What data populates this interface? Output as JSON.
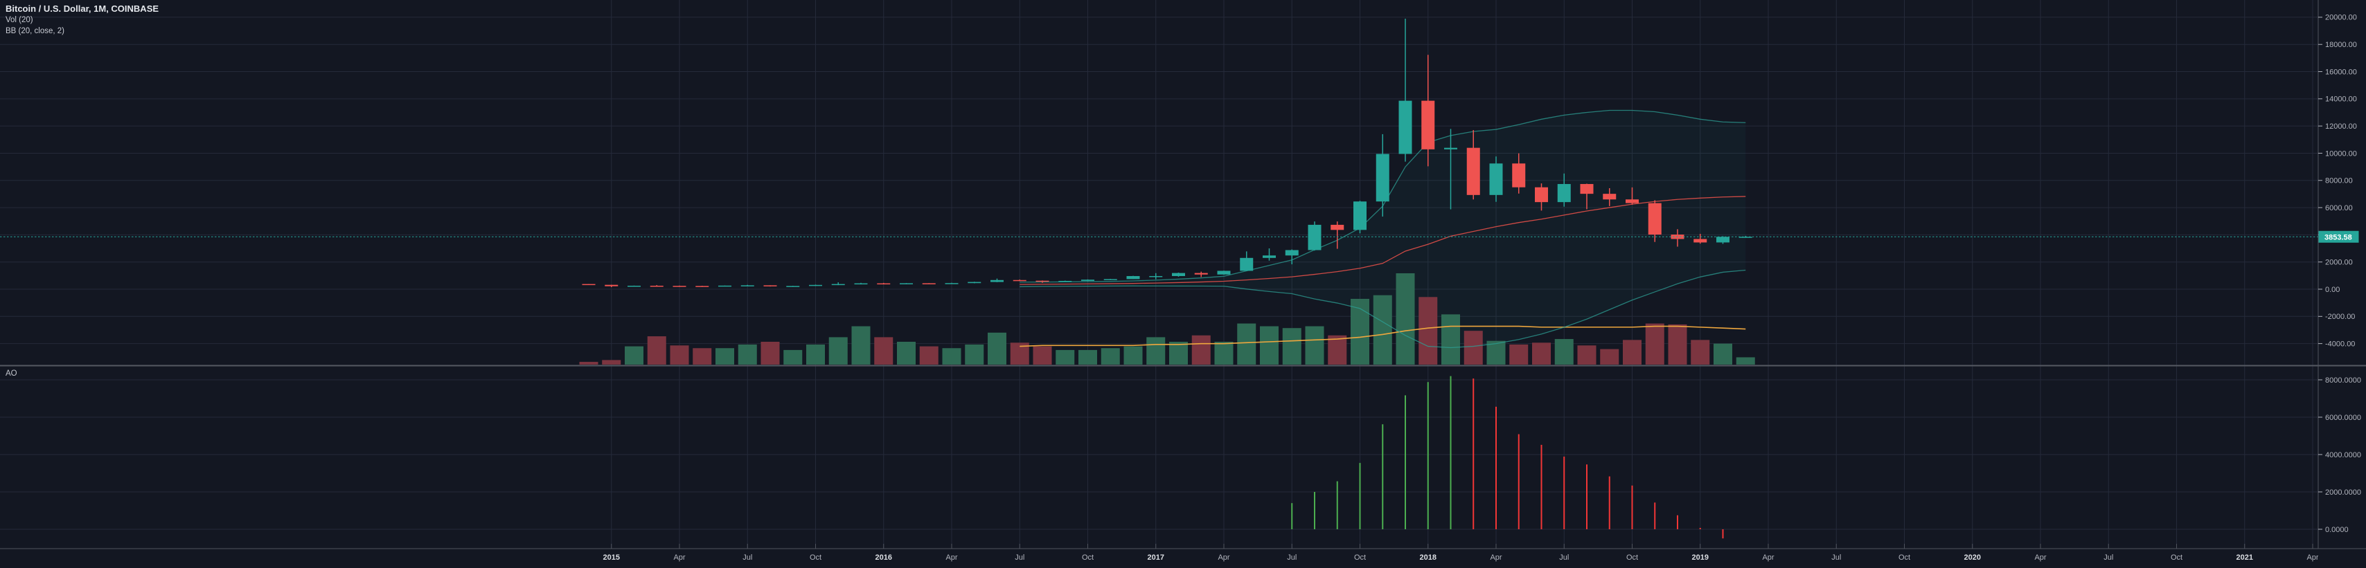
{
  "header": {
    "symbol_title": "Bitcoin / U.S. Dollar, 1M, COINBASE",
    "indicator_vol": "Vol (20)",
    "indicator_bb": "BB (20, close, 2)",
    "ao_label": "AO"
  },
  "colors": {
    "bg": "#131722",
    "grid": "#252a3a",
    "separator": "#555962",
    "axis_line": "#50545e",
    "axis_text": "#b2b5be",
    "axis_text_major": "#dcdfe4",
    "up": "#26a69a",
    "down": "#ef5350",
    "vol_up": "#2f6b55",
    "vol_down": "#7c3540",
    "vol_ma": "#efa73e",
    "bb_basis": "#cf4a45",
    "bb_band": "rgba(45,160,150,0.75)",
    "bb_fill": "rgba(38,166,154,0.055)",
    "ao_up": "#4caf50",
    "ao_down": "#f23636",
    "price_line": "#26a69a",
    "tag_bg": "#26a69a",
    "tag_text": "#ffffff"
  },
  "price_axis": {
    "ticks": [
      {
        "v": 20000,
        "label": "20000.00"
      },
      {
        "v": 18000,
        "label": "18000.00"
      },
      {
        "v": 16000,
        "label": "16000.00"
      },
      {
        "v": 14000,
        "label": "14000.00"
      },
      {
        "v": 12000,
        "label": "12000.00"
      },
      {
        "v": 10000,
        "label": "10000.00"
      },
      {
        "v": 8000,
        "label": "8000.00"
      },
      {
        "v": 6000,
        "label": "6000.00"
      },
      {
        "v": 4000,
        "label": "4000.00"
      },
      {
        "v": 2000,
        "label": "2000.00"
      },
      {
        "v": 0,
        "label": "0.00"
      },
      {
        "v": -2000,
        "label": "-2000.00"
      },
      {
        "v": -4000,
        "label": "-4000.00"
      }
    ],
    "current_price": {
      "value": 3853.58,
      "label": "3853.58"
    }
  },
  "ao_axis": {
    "ticks": [
      {
        "v": 8000,
        "label": "8000.0000"
      },
      {
        "v": 6000,
        "label": "6000.0000"
      },
      {
        "v": 4000,
        "label": "4000.0000"
      },
      {
        "v": 2000,
        "label": "2000.0000"
      },
      {
        "v": 0,
        "label": "0.0000"
      }
    ]
  },
  "time_axis": {
    "labels": [
      {
        "mi": 1,
        "text": "2015",
        "major": true
      },
      {
        "mi": 4,
        "text": "Apr"
      },
      {
        "mi": 7,
        "text": "Jul"
      },
      {
        "mi": 10,
        "text": "Oct"
      },
      {
        "mi": 13,
        "text": "2016",
        "major": true
      },
      {
        "mi": 16,
        "text": "Apr"
      },
      {
        "mi": 19,
        "text": "Jul"
      },
      {
        "mi": 22,
        "text": "Oct"
      },
      {
        "mi": 25,
        "text": "2017",
        "major": true
      },
      {
        "mi": 28,
        "text": "Apr"
      },
      {
        "mi": 31,
        "text": "Jul"
      },
      {
        "mi": 34,
        "text": "Oct"
      },
      {
        "mi": 37,
        "text": "2018",
        "major": true
      },
      {
        "mi": 40,
        "text": "Apr"
      },
      {
        "mi": 43,
        "text": "Jul"
      },
      {
        "mi": 46,
        "text": "Oct"
      },
      {
        "mi": 49,
        "text": "2019",
        "major": true
      },
      {
        "mi": 52,
        "text": "Apr"
      },
      {
        "mi": 55,
        "text": "Jul"
      },
      {
        "mi": 58,
        "text": "Oct"
      },
      {
        "mi": 61,
        "text": "2020",
        "major": true
      },
      {
        "mi": 64,
        "text": "Apr"
      },
      {
        "mi": 67,
        "text": "Jul"
      },
      {
        "mi": 70,
        "text": "Oct"
      },
      {
        "mi": 73,
        "text": "2021",
        "major": true
      },
      {
        "mi": 76,
        "text": "Apr"
      }
    ]
  },
  "chart_data": {
    "type": "candlestick",
    "title": "Bitcoin / U.S. Dollar",
    "interval": "1M",
    "exchange": "COINBASE",
    "current_price": 3853.58,
    "panes": [
      "price + Vol(20) + BB(20,close,2)",
      "AO"
    ],
    "price_range": [
      -4000,
      20000
    ],
    "ao_range": [
      -600,
      8400
    ],
    "columns": [
      "month",
      "open",
      "high",
      "low",
      "close",
      "rel_volume",
      "bb_basis",
      "bb_upper",
      "bb_lower",
      "vol_ma_rel",
      "ao"
    ],
    "months": [
      [
        "2014-12",
        378,
        382,
        309,
        320,
        0.03,
        null,
        null,
        null,
        null,
        null
      ],
      [
        "2015-01",
        320,
        321,
        152,
        217,
        0.05,
        null,
        null,
        null,
        null,
        null
      ],
      [
        "2015-02",
        217,
        265,
        210,
        254,
        0.2,
        null,
        null,
        null,
        null,
        null
      ],
      [
        "2015-03",
        254,
        300,
        236,
        244,
        0.31,
        null,
        null,
        null,
        null,
        null
      ],
      [
        "2015-04",
        244,
        262,
        213,
        236,
        0.21,
        null,
        null,
        null,
        null,
        null
      ],
      [
        "2015-05",
        236,
        248,
        228,
        230,
        0.18,
        null,
        null,
        null,
        null,
        null
      ],
      [
        "2015-06",
        230,
        268,
        219,
        263,
        0.18,
        null,
        null,
        null,
        null,
        null
      ],
      [
        "2015-07",
        263,
        319,
        255,
        284,
        0.22,
        null,
        null,
        null,
        null,
        null
      ],
      [
        "2015-08",
        284,
        287,
        198,
        230,
        0.25,
        null,
        null,
        null,
        null,
        null
      ],
      [
        "2015-09",
        230,
        247,
        223,
        236,
        0.16,
        null,
        null,
        null,
        null,
        null
      ],
      [
        "2015-10",
        236,
        334,
        235,
        314,
        0.22,
        null,
        null,
        null,
        null,
        null
      ],
      [
        "2015-11",
        314,
        504,
        299,
        377,
        0.3,
        null,
        null,
        null,
        null,
        null
      ],
      [
        "2015-12",
        377,
        467,
        350,
        430,
        0.42,
        null,
        null,
        null,
        null,
        null
      ],
      [
        "2016-01",
        430,
        462,
        350,
        368,
        0.3,
        null,
        null,
        null,
        null,
        null
      ],
      [
        "2016-02",
        368,
        447,
        366,
        437,
        0.25,
        null,
        null,
        null,
        null,
        null
      ],
      [
        "2016-03",
        437,
        444,
        383,
        416,
        0.2,
        null,
        null,
        null,
        null,
        null
      ],
      [
        "2016-04",
        416,
        470,
        414,
        448,
        0.18,
        null,
        null,
        null,
        null,
        null
      ],
      [
        "2016-05",
        448,
        547,
        438,
        531,
        0.22,
        null,
        null,
        null,
        null,
        null
      ],
      [
        "2016-06",
        531,
        780,
        516,
        672,
        0.35,
        null,
        null,
        null,
        null,
        null
      ],
      [
        "2016-07",
        672,
        708,
        603,
        624,
        0.24,
        350,
        520,
        180,
        0.2,
        null
      ],
      [
        "2016-08",
        624,
        639,
        465,
        573,
        0.2,
        362,
        528,
        196,
        0.21,
        null
      ],
      [
        "2016-09",
        573,
        629,
        568,
        609,
        0.16,
        374,
        540,
        208,
        0.21,
        null
      ],
      [
        "2016-10",
        609,
        720,
        598,
        700,
        0.16,
        388,
        556,
        220,
        0.21,
        null
      ],
      [
        "2016-11",
        700,
        755,
        678,
        742,
        0.18,
        404,
        576,
        232,
        0.21,
        null
      ],
      [
        "2016-12",
        742,
        982,
        741,
        964,
        0.2,
        424,
        610,
        238,
        0.21,
        null
      ],
      [
        "2017-01",
        964,
        1180,
        734,
        965,
        0.3,
        452,
        668,
        236,
        0.22,
        null
      ],
      [
        "2017-02",
        965,
        1220,
        918,
        1190,
        0.25,
        486,
        740,
        232,
        0.22,
        null
      ],
      [
        "2017-03",
        1190,
        1290,
        891,
        1080,
        0.32,
        530,
        830,
        230,
        0.23,
        null
      ],
      [
        "2017-04",
        1080,
        1365,
        1060,
        1350,
        0.25,
        584,
        950,
        218,
        0.23,
        null
      ],
      [
        "2017-05",
        1350,
        2780,
        1340,
        2300,
        0.45,
        680,
        1350,
        10,
        0.24,
        null
      ],
      [
        "2017-06",
        2300,
        3000,
        2100,
        2480,
        0.42,
        790,
        1750,
        -170,
        0.25,
        null
      ],
      [
        "2017-07",
        2480,
        2920,
        1830,
        2875,
        0.4,
        910,
        2150,
        -330,
        0.26,
        1400
      ],
      [
        "2017-08",
        2875,
        4980,
        2840,
        4735,
        0.42,
        1090,
        2900,
        -720,
        0.27,
        2000
      ],
      [
        "2017-09",
        4735,
        4980,
        2970,
        4360,
        0.32,
        1290,
        3600,
        -1020,
        0.28,
        2570
      ],
      [
        "2017-10",
        4360,
        6500,
        4110,
        6450,
        0.72,
        1540,
        4500,
        -1420,
        0.3,
        3550
      ],
      [
        "2017-11",
        6450,
        11400,
        5340,
        9947,
        0.76,
        1900,
        6100,
        -2400,
        0.33,
        5620
      ],
      [
        "2017-12",
        9947,
        19891,
        9380,
        13860,
        1.0,
        2800,
        9000,
        -3400,
        0.37,
        7170
      ],
      [
        "2018-01",
        13860,
        17234,
        9035,
        10285,
        0.74,
        3300,
        10800,
        -4200,
        0.4,
        7880
      ],
      [
        "2018-02",
        10285,
        11786,
        5873,
        10397,
        0.55,
        3900,
        11300,
        -4300,
        0.42,
        8200
      ],
      [
        "2018-03",
        10397,
        11700,
        6600,
        6928,
        0.37,
        4250,
        11600,
        -4200,
        0.42,
        8070
      ],
      [
        "2018-04",
        6928,
        9760,
        6425,
        9245,
        0.26,
        4600,
        11750,
        -4000,
        0.42,
        6560
      ],
      [
        "2018-05",
        9245,
        9990,
        7032,
        7494,
        0.22,
        4900,
        12100,
        -3700,
        0.42,
        5090
      ],
      [
        "2018-06",
        7494,
        7780,
        5780,
        6404,
        0.24,
        5150,
        12500,
        -3300,
        0.41,
        4520
      ],
      [
        "2018-07",
        6404,
        8507,
        6070,
        7735,
        0.28,
        5450,
        12800,
        -2800,
        0.41,
        3890
      ],
      [
        "2018-08",
        7735,
        7760,
        5880,
        7014,
        0.21,
        5750,
        13000,
        -2200,
        0.41,
        3470
      ],
      [
        "2018-09",
        7014,
        7429,
        6111,
        6601,
        0.17,
        6000,
        13150,
        -1500,
        0.41,
        2830
      ],
      [
        "2018-10",
        6601,
        7486,
        6212,
        6330,
        0.27,
        6250,
        13150,
        -800,
        0.41,
        2340
      ],
      [
        "2018-11",
        6330,
        6542,
        3474,
        4017,
        0.45,
        6450,
        13050,
        -200,
        0.42,
        1430
      ],
      [
        "2018-12",
        4017,
        4410,
        3128,
        3691,
        0.44,
        6600,
        12800,
        400,
        0.42,
        750
      ],
      [
        "2019-01",
        3691,
        4069,
        3349,
        3437,
        0.27,
        6700,
        12500,
        900,
        0.41,
        75
      ],
      [
        "2019-02",
        3437,
        3900,
        3331,
        3853,
        0.23,
        6780,
        12300,
        1250,
        0.4,
        -490
      ],
      [
        "2019-03",
        3853,
        3920,
        3780,
        3853.58,
        0.08,
        6820,
        12250,
        1400,
        0.39,
        null
      ]
    ]
  }
}
